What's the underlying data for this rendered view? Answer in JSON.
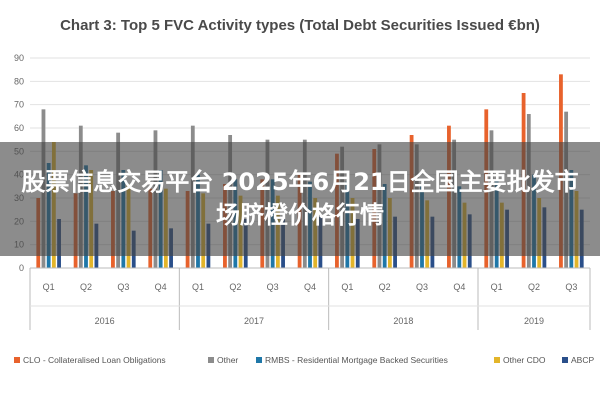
{
  "overlay": {
    "text": "股票信息交易平台 2025年6月21日全国主要批发市场脐橙价格行情"
  },
  "chart_data": {
    "type": "bar",
    "title": "Chart 3: Top 5 FVC Activity types (Total Debt Securities Issued €bn)",
    "xlabel": "",
    "ylabel": "",
    "ylim": [
      0,
      90
    ],
    "yticks": [
      0,
      10,
      20,
      30,
      40,
      50,
      60,
      70,
      80,
      90
    ],
    "grid": true,
    "legend_position": "bottom",
    "categories": [
      "Q1",
      "Q2",
      "Q3",
      "Q4",
      "Q1",
      "Q2",
      "Q3",
      "Q4",
      "Q1",
      "Q2",
      "Q3",
      "Q4",
      "Q1",
      "Q2",
      "Q3"
    ],
    "year_groups": [
      {
        "label": "2016",
        "count": 4
      },
      {
        "label": "2017",
        "count": 4
      },
      {
        "label": "2018",
        "count": 4
      },
      {
        "label": "2019",
        "count": 3
      }
    ],
    "series": [
      {
        "name": "CLO - Collateralised Loan Obligations",
        "color": "#e8622c",
        "values": [
          30,
          32,
          33,
          34,
          33,
          36,
          38,
          40,
          49,
          51,
          57,
          61,
          68,
          75,
          83
        ]
      },
      {
        "name": "Other",
        "color": "#8c8c8c",
        "values": [
          68,
          61,
          58,
          59,
          61,
          57,
          55,
          55,
          52,
          53,
          53,
          55,
          59,
          66,
          67
        ]
      },
      {
        "name": "RMBS - Residential Mortgage Backed Securities",
        "color": "#1f77a8",
        "values": [
          45,
          44,
          42,
          42,
          40,
          38,
          38,
          37,
          37,
          36,
          36,
          35,
          38,
          40,
          42
        ]
      },
      {
        "name": "Other CDO",
        "color": "#e3b52a",
        "values": [
          54,
          42,
          36,
          34,
          32,
          31,
          31,
          30,
          30,
          30,
          29,
          28,
          28,
          30,
          33
        ]
      },
      {
        "name": "ABCP",
        "color": "#2a4f8a",
        "values": [
          21,
          19,
          16,
          17,
          19,
          21,
          22,
          22,
          21,
          22,
          22,
          23,
          25,
          26,
          25
        ]
      }
    ]
  }
}
